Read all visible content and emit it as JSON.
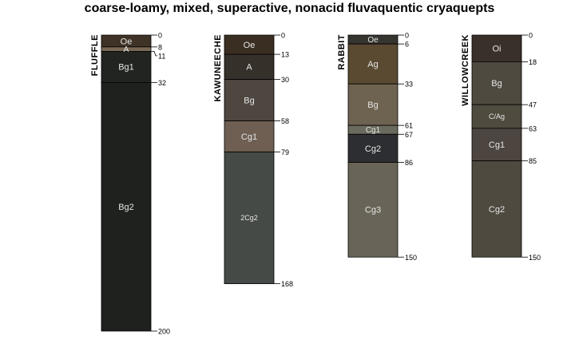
{
  "chart_data": {
    "type": "soil-profile",
    "title": "coarse-loamy, mixed, superactive, nonacid fluvaquentic cryaquepts",
    "depth_units": "cm",
    "profiles": [
      {
        "name": "FLUFFLE",
        "horizons": [
          {
            "name": "Oe",
            "top": 0,
            "bottom": 8,
            "color": "#3f3327"
          },
          {
            "name": "A",
            "top": 8,
            "bottom": 11,
            "color": "#7a6856"
          },
          {
            "name": "Bg1",
            "top": 11,
            "bottom": 32,
            "color": "#212421"
          },
          {
            "name": "Bg2",
            "top": 32,
            "bottom": 200,
            "color": "#1e211e"
          }
        ],
        "depth_labels": [
          "0",
          "8",
          "11",
          "32",
          "200"
        ]
      },
      {
        "name": "KAWUNEECHE",
        "horizons": [
          {
            "name": "Oe",
            "top": 0,
            "bottom": 13,
            "color": "#3a2e22"
          },
          {
            "name": "A",
            "top": 13,
            "bottom": 30,
            "color": "#36302b"
          },
          {
            "name": "Bg",
            "top": 30,
            "bottom": 58,
            "color": "#4e463f"
          },
          {
            "name": "Cg1",
            "top": 58,
            "bottom": 79,
            "color": "#6e5f52"
          },
          {
            "name": "2Cg2",
            "top": 79,
            "bottom": 168,
            "color": "#454a46"
          }
        ],
        "depth_labels": [
          "0",
          "13",
          "30",
          "58",
          "79",
          "168"
        ]
      },
      {
        "name": "RABBIT",
        "horizons": [
          {
            "name": "Oe",
            "top": 0,
            "bottom": 6,
            "color": "#35342f"
          },
          {
            "name": "Ag",
            "top": 6,
            "bottom": 33,
            "color": "#5a4a32"
          },
          {
            "name": "Bg",
            "top": 33,
            "bottom": 61,
            "color": "#6e6250"
          },
          {
            "name": "Cg1",
            "top": 61,
            "bottom": 67,
            "color": "#6a6a5e"
          },
          {
            "name": "Cg2",
            "top": 67,
            "bottom": 86,
            "color": "#2d2e31"
          },
          {
            "name": "Cg3",
            "top": 86,
            "bottom": 150,
            "color": "#686457"
          }
        ],
        "depth_labels": [
          "0",
          "6",
          "33",
          "61",
          "67",
          "86",
          "150"
        ]
      },
      {
        "name": "WILLOWCREEK",
        "horizons": [
          {
            "name": "Oi",
            "top": 0,
            "bottom": 18,
            "color": "#3a302a"
          },
          {
            "name": "Bg",
            "top": 18,
            "bottom": 47,
            "color": "#4f4a40"
          },
          {
            "name": "C/Ag",
            "top": 47,
            "bottom": 63,
            "color": "#4f4b3f"
          },
          {
            "name": "Cg1",
            "top": 63,
            "bottom": 85,
            "color": "#4d453f"
          },
          {
            "name": "Cg2",
            "top": 85,
            "bottom": 150,
            "color": "#4f4a40"
          }
        ],
        "depth_labels": [
          "0",
          "18",
          "47",
          "63",
          "85",
          "150"
        ]
      }
    ]
  }
}
